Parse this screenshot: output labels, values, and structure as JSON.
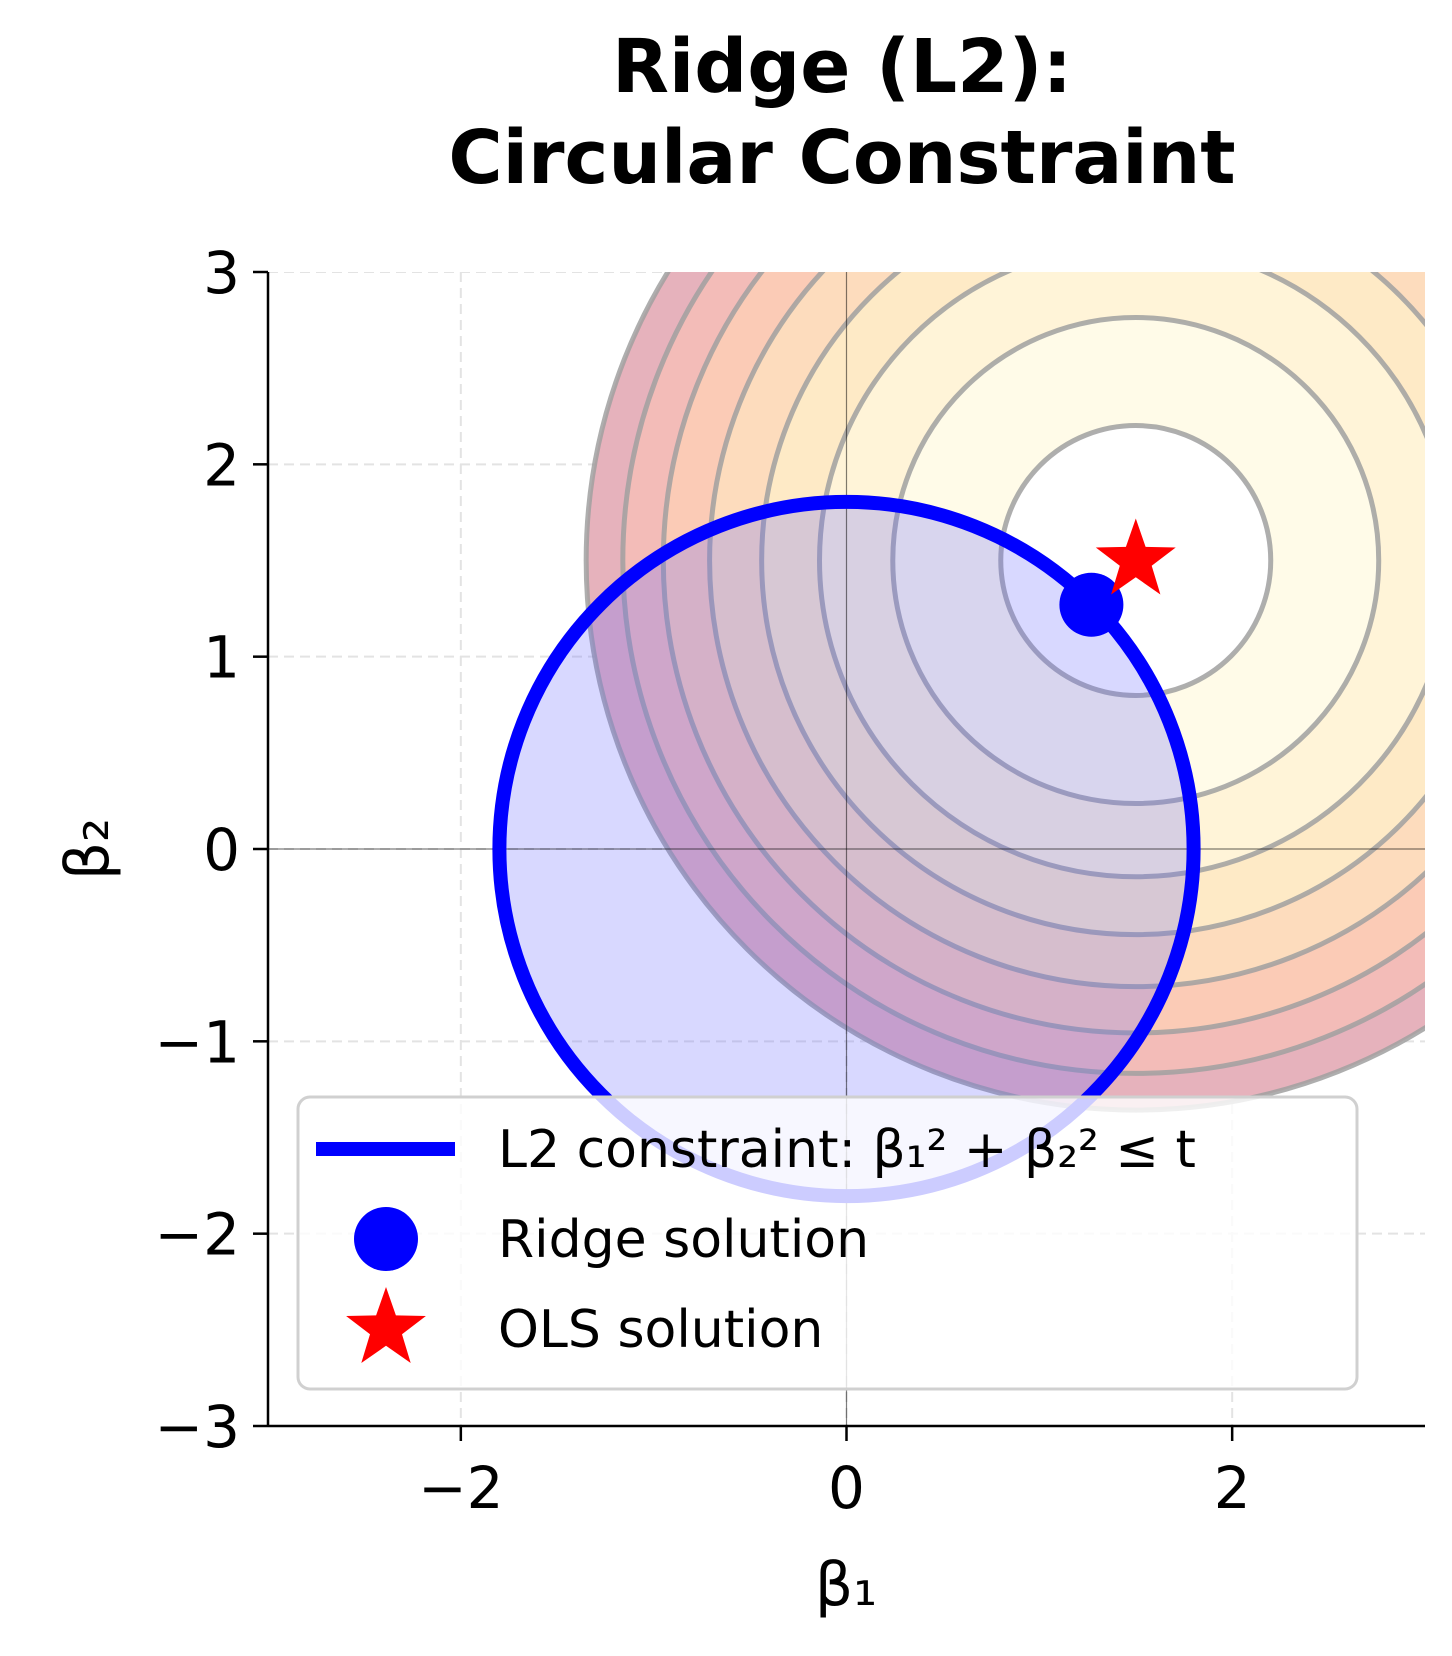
{
  "chart_data": {
    "type": "line",
    "title": [
      "Ridge (L2):",
      "Circular Constraint"
    ],
    "xlabel": "β₁",
    "ylabel": "β₂",
    "xlim": [
      -3,
      3
    ],
    "ylim": [
      -3,
      3
    ],
    "xticks": [
      -2,
      0,
      2
    ],
    "xtick_labels": [
      "−2",
      "0",
      "2"
    ],
    "yticks": [
      -3,
      -2,
      -1,
      0,
      1,
      2,
      3
    ],
    "ytick_labels": [
      "−3",
      "−2",
      "−1",
      "0",
      "1",
      "2",
      "3"
    ],
    "grid": true,
    "contours": {
      "center": [
        1.5,
        1.5
      ],
      "radii": [
        0.7,
        1.26,
        1.64,
        1.94,
        2.21,
        2.45,
        2.66,
        2.85
      ],
      "band_colors": [
        "#fffbe8",
        "#fff4d8",
        "#feeac6",
        "#fddcbd",
        "#fbcbb6",
        "#f3bcb8",
        "#e6b2bc"
      ],
      "line_color": "#a0a0a0"
    },
    "constraint": {
      "radius": 1.8,
      "color": "#0000ff",
      "fill": "#d8d8ff"
    },
    "ridge_solution": [
      1.27,
      1.27
    ],
    "ols_solution": [
      1.5,
      1.5
    ],
    "legend": {
      "position": "lower-right",
      "entries": [
        {
          "label": "L2 constraint: β₁² + β₂² ≤ t",
          "marker": "line",
          "color": "#0000ff"
        },
        {
          "label": "Ridge solution",
          "marker": "circle",
          "color": "#0000ff"
        },
        {
          "label": "OLS solution",
          "marker": "star",
          "color": "#ff0000"
        }
      ]
    }
  }
}
